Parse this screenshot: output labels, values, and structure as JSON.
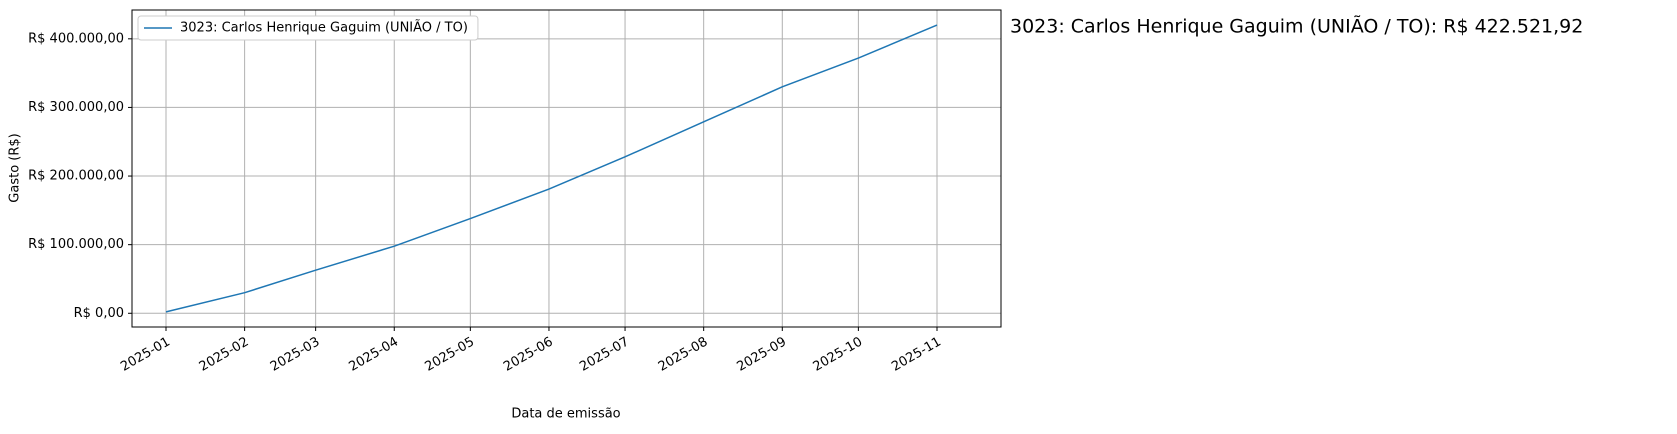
{
  "chart_data": {
    "type": "line",
    "annotation": "3023: Carlos Henrique Gaguim (UNIÃO / TO): R$ 422.521,92",
    "x_label": "Data de emissão",
    "y_label": "Gasto (R$)",
    "x": [
      "2025-01",
      "2025-02",
      "2025-03",
      "2025-04",
      "2025-05",
      "2025-06",
      "2025-07",
      "2025-08",
      "2025-09",
      "2025-10",
      "2025-11"
    ],
    "series": [
      {
        "name": "3023: Carlos Henrique Gaguim (UNIÃO / TO)",
        "color": "#1f77b4",
        "values": [
          2000,
          30000,
          62800,
          97800,
          138000,
          181000,
          228000,
          279000,
          330000,
          372000,
          420000
        ]
      }
    ],
    "ylim": [
      -20000,
      442000
    ],
    "yticks": [
      {
        "value": 0,
        "label": "R$ 0,00"
      },
      {
        "value": 100000,
        "label": "R$ 100.000,00"
      },
      {
        "value": 200000,
        "label": "R$ 200.000,00"
      },
      {
        "value": 300000,
        "label": "R$ 300.000,00"
      },
      {
        "value": 400000,
        "label": "R$ 400.000,00"
      }
    ],
    "grid": true,
    "legend": "upper left"
  }
}
